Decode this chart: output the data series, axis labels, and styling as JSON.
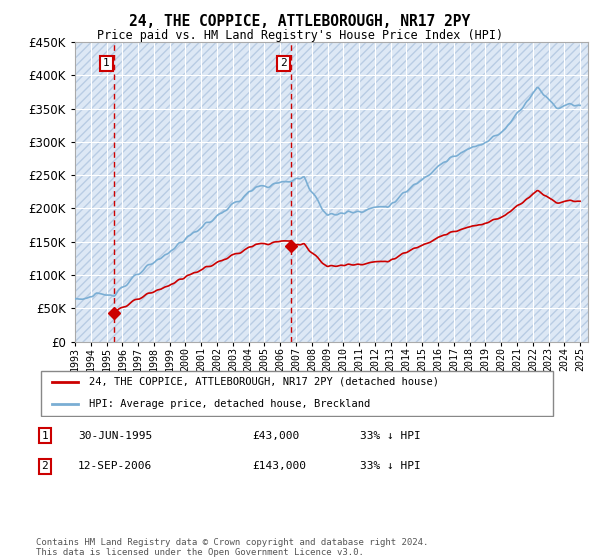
{
  "title": "24, THE COPPICE, ATTLEBOROUGH, NR17 2PY",
  "subtitle": "Price paid vs. HM Land Registry's House Price Index (HPI)",
  "ylim": [
    0,
    450000
  ],
  "xlim_start": 1993.0,
  "xlim_end": 2025.5,
  "xtick_years": [
    1993,
    1994,
    1995,
    1996,
    1997,
    1998,
    1999,
    2000,
    2001,
    2002,
    2003,
    2004,
    2005,
    2006,
    2007,
    2008,
    2009,
    2010,
    2011,
    2012,
    2013,
    2014,
    2015,
    2016,
    2017,
    2018,
    2019,
    2020,
    2021,
    2022,
    2023,
    2024,
    2025
  ],
  "purchase1_date": 1995.5,
  "purchase1_price": 43000,
  "purchase2_date": 2006.71,
  "purchase2_price": 143000,
  "hpi_color": "#7aaed4",
  "price_color": "#cc0000",
  "vline_color": "#cc0000",
  "grid_color": "#cccccc",
  "bg_color": "#dde8f5",
  "hatch_bg_color": "#ccd9ee",
  "legend_label_price": "24, THE COPPICE, ATTLEBOROUGH, NR17 2PY (detached house)",
  "legend_label_hpi": "HPI: Average price, detached house, Breckland",
  "footnote": "Contains HM Land Registry data © Crown copyright and database right 2024.\nThis data is licensed under the Open Government Licence v3.0.",
  "sale1_label": "1",
  "sale1_date_str": "30-JUN-1995",
  "sale1_price_str": "£43,000",
  "sale1_hpi_str": "33% ↓ HPI",
  "sale2_label": "2",
  "sale2_date_str": "12-SEP-2006",
  "sale2_price_str": "£143,000",
  "sale2_hpi_str": "33% ↓ HPI"
}
